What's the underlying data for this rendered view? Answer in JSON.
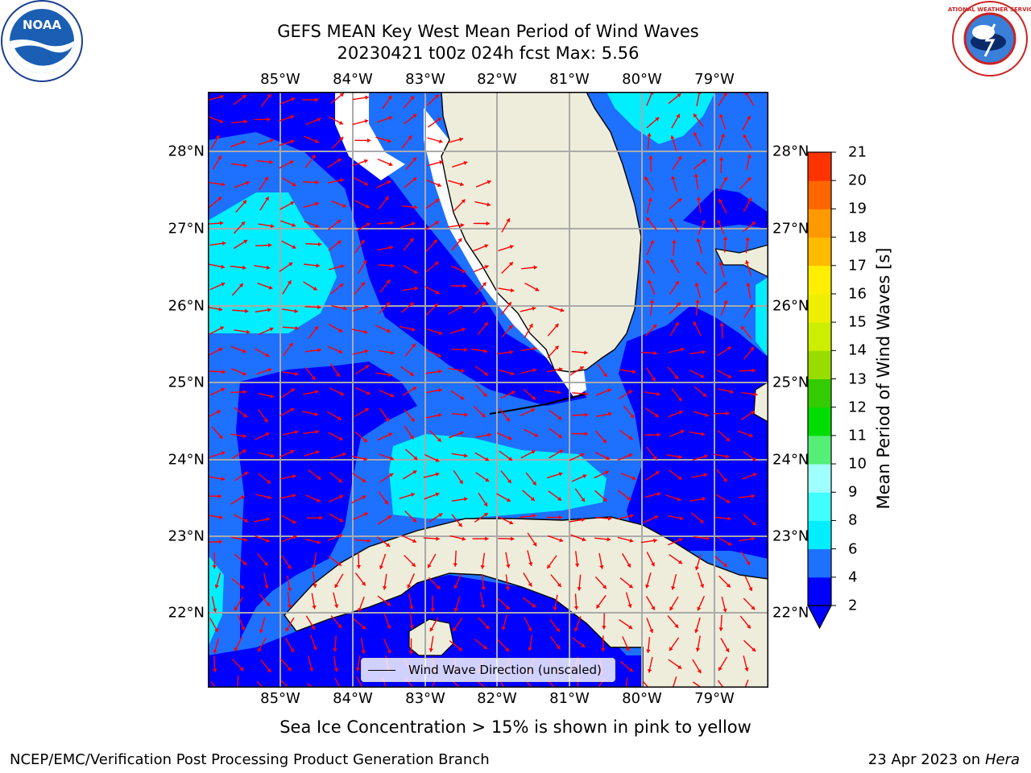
{
  "title_line1": "GEFS MEAN Key West Mean Period of Wind Waves",
  "title_line2": "20230421 t00z 024h fcst   Max: 5.56",
  "lon_labels": [
    "85°W",
    "84°W",
    "83°W",
    "82°W",
    "81°W",
    "80°W",
    "79°W"
  ],
  "lat_labels": [
    "28°N",
    "27°N",
    "26°N",
    "25°N",
    "24°N",
    "23°N",
    "22°N"
  ],
  "colorbar": {
    "label": "Mean Period of Wind Waves [s]",
    "ticks": [
      "2",
      "4",
      "6",
      "8",
      "9",
      "10",
      "11",
      "12",
      "13",
      "14",
      "15",
      "16",
      "17",
      "18",
      "19",
      "20",
      "21"
    ],
    "colors": [
      "#0000ff",
      "#1e70ff",
      "#00eeff",
      "#40ffff",
      "#a0ffff",
      "#55ee77",
      "#00dd00",
      "#33cc00",
      "#99dd00",
      "#ccee00",
      "#eeee00",
      "#ffee00",
      "#ffbb00",
      "#ff9900",
      "#ff6600",
      "#ff3300",
      "#ff0000"
    ]
  },
  "map": {
    "land_color": "#eeeddc",
    "colors": {
      "dark_blue": "#0000ff",
      "mid_blue": "#1e70ff",
      "cyan": "#00eeff",
      "arrow": "#ff0000"
    }
  },
  "legend_text": "Wind Wave Direction (unscaled)",
  "footnote": "Sea Ice Concentration > 15% is shown in pink to yellow",
  "footer_left": "NCEP/EMC/Verification Post Processing Product Generation Branch",
  "footer_date": "23 Apr 2023 on ",
  "footer_host": "Hera",
  "logos": {
    "noaa": "NOAA",
    "nws": "NATIONAL WEATHER SERVICE"
  }
}
